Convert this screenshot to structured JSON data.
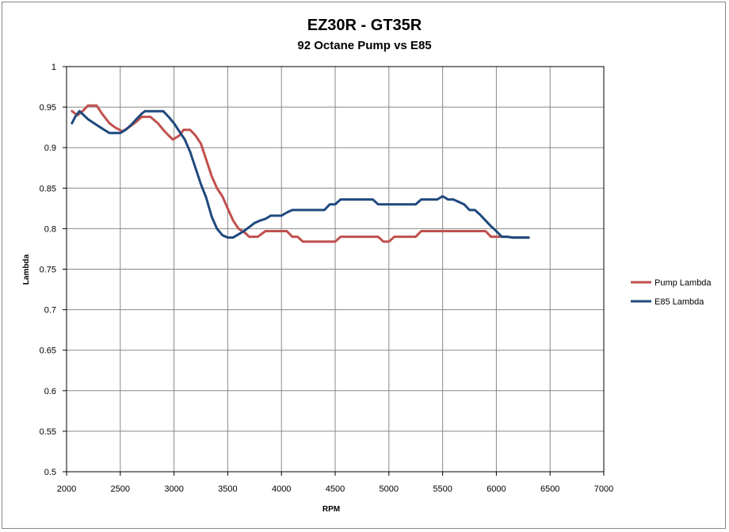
{
  "chart_data": {
    "type": "line",
    "title": "EZ30R - GT35R",
    "subtitle": "92 Octane Pump vs E85",
    "xlabel": "RPM",
    "ylabel": "Lambda",
    "xlim": [
      2000,
      7000
    ],
    "ylim": [
      0.5,
      1
    ],
    "x_ticks": [
      "2000",
      "2500",
      "3000",
      "3500",
      "4000",
      "4500",
      "5000",
      "5500",
      "6000",
      "6500",
      "7000"
    ],
    "y_ticks": [
      "0.5",
      "0.55",
      "0.6",
      "0.65",
      "0.7",
      "0.75",
      "0.8",
      "0.85",
      "0.9",
      "0.95",
      "1"
    ],
    "grid": true,
    "legend_position": "right",
    "series": [
      {
        "name": "Pump Lambda",
        "color": "#c0504d",
        "points": [
          [
            2050,
            0.945
          ],
          [
            2100,
            0.94
          ],
          [
            2150,
            0.945
          ],
          [
            2200,
            0.952
          ],
          [
            2280,
            0.952
          ],
          [
            2330,
            0.942
          ],
          [
            2400,
            0.93
          ],
          [
            2450,
            0.925
          ],
          [
            2520,
            0.92
          ],
          [
            2580,
            0.925
          ],
          [
            2650,
            0.932
          ],
          [
            2700,
            0.938
          ],
          [
            2780,
            0.938
          ],
          [
            2850,
            0.93
          ],
          [
            2900,
            0.922
          ],
          [
            2950,
            0.915
          ],
          [
            2990,
            0.91
          ],
          [
            3050,
            0.915
          ],
          [
            3090,
            0.922
          ],
          [
            3150,
            0.922
          ],
          [
            3200,
            0.915
          ],
          [
            3250,
            0.905
          ],
          [
            3300,
            0.885
          ],
          [
            3350,
            0.865
          ],
          [
            3400,
            0.85
          ],
          [
            3450,
            0.84
          ],
          [
            3500,
            0.825
          ],
          [
            3550,
            0.81
          ],
          [
            3600,
            0.8
          ],
          [
            3660,
            0.795
          ],
          [
            3700,
            0.79
          ],
          [
            3780,
            0.79
          ],
          [
            3850,
            0.797
          ],
          [
            3950,
            0.797
          ],
          [
            4050,
            0.797
          ],
          [
            4100,
            0.79
          ],
          [
            4150,
            0.79
          ],
          [
            4200,
            0.784
          ],
          [
            4350,
            0.784
          ],
          [
            4500,
            0.784
          ],
          [
            4550,
            0.79
          ],
          [
            4700,
            0.79
          ],
          [
            4900,
            0.79
          ],
          [
            4950,
            0.784
          ],
          [
            5000,
            0.784
          ],
          [
            5050,
            0.79
          ],
          [
            5250,
            0.79
          ],
          [
            5300,
            0.797
          ],
          [
            5500,
            0.797
          ],
          [
            5700,
            0.797
          ],
          [
            5900,
            0.797
          ],
          [
            5950,
            0.79
          ],
          [
            6100,
            0.79
          ],
          [
            6150,
            0.789
          ],
          [
            6300,
            0.789
          ]
        ]
      },
      {
        "name": "E85 Lambda",
        "color": "#1f497d",
        "points": [
          [
            2050,
            0.93
          ],
          [
            2080,
            0.938
          ],
          [
            2120,
            0.945
          ],
          [
            2200,
            0.935
          ],
          [
            2280,
            0.928
          ],
          [
            2350,
            0.922
          ],
          [
            2400,
            0.918
          ],
          [
            2500,
            0.918
          ],
          [
            2550,
            0.922
          ],
          [
            2600,
            0.928
          ],
          [
            2650,
            0.935
          ],
          [
            2700,
            0.942
          ],
          [
            2730,
            0.945
          ],
          [
            2850,
            0.945
          ],
          [
            2900,
            0.945
          ],
          [
            2950,
            0.938
          ],
          [
            3000,
            0.93
          ],
          [
            3050,
            0.92
          ],
          [
            3100,
            0.91
          ],
          [
            3150,
            0.895
          ],
          [
            3200,
            0.875
          ],
          [
            3250,
            0.855
          ],
          [
            3300,
            0.838
          ],
          [
            3350,
            0.815
          ],
          [
            3400,
            0.8
          ],
          [
            3450,
            0.792
          ],
          [
            3500,
            0.789
          ],
          [
            3550,
            0.789
          ],
          [
            3600,
            0.793
          ],
          [
            3650,
            0.797
          ],
          [
            3700,
            0.802
          ],
          [
            3750,
            0.807
          ],
          [
            3800,
            0.81
          ],
          [
            3850,
            0.812
          ],
          [
            3900,
            0.816
          ],
          [
            4000,
            0.816
          ],
          [
            4050,
            0.82
          ],
          [
            4100,
            0.823
          ],
          [
            4300,
            0.823
          ],
          [
            4400,
            0.823
          ],
          [
            4450,
            0.83
          ],
          [
            4500,
            0.83
          ],
          [
            4550,
            0.836
          ],
          [
            4700,
            0.836
          ],
          [
            4850,
            0.836
          ],
          [
            4900,
            0.83
          ],
          [
            5000,
            0.83
          ],
          [
            5200,
            0.83
          ],
          [
            5250,
            0.83
          ],
          [
            5300,
            0.836
          ],
          [
            5450,
            0.836
          ],
          [
            5500,
            0.84
          ],
          [
            5550,
            0.836
          ],
          [
            5600,
            0.836
          ],
          [
            5700,
            0.83
          ],
          [
            5750,
            0.823
          ],
          [
            5800,
            0.823
          ],
          [
            5850,
            0.817
          ],
          [
            5900,
            0.81
          ],
          [
            5950,
            0.803
          ],
          [
            6000,
            0.797
          ],
          [
            6050,
            0.79
          ],
          [
            6100,
            0.79
          ],
          [
            6150,
            0.789
          ],
          [
            6300,
            0.789
          ]
        ]
      }
    ]
  }
}
